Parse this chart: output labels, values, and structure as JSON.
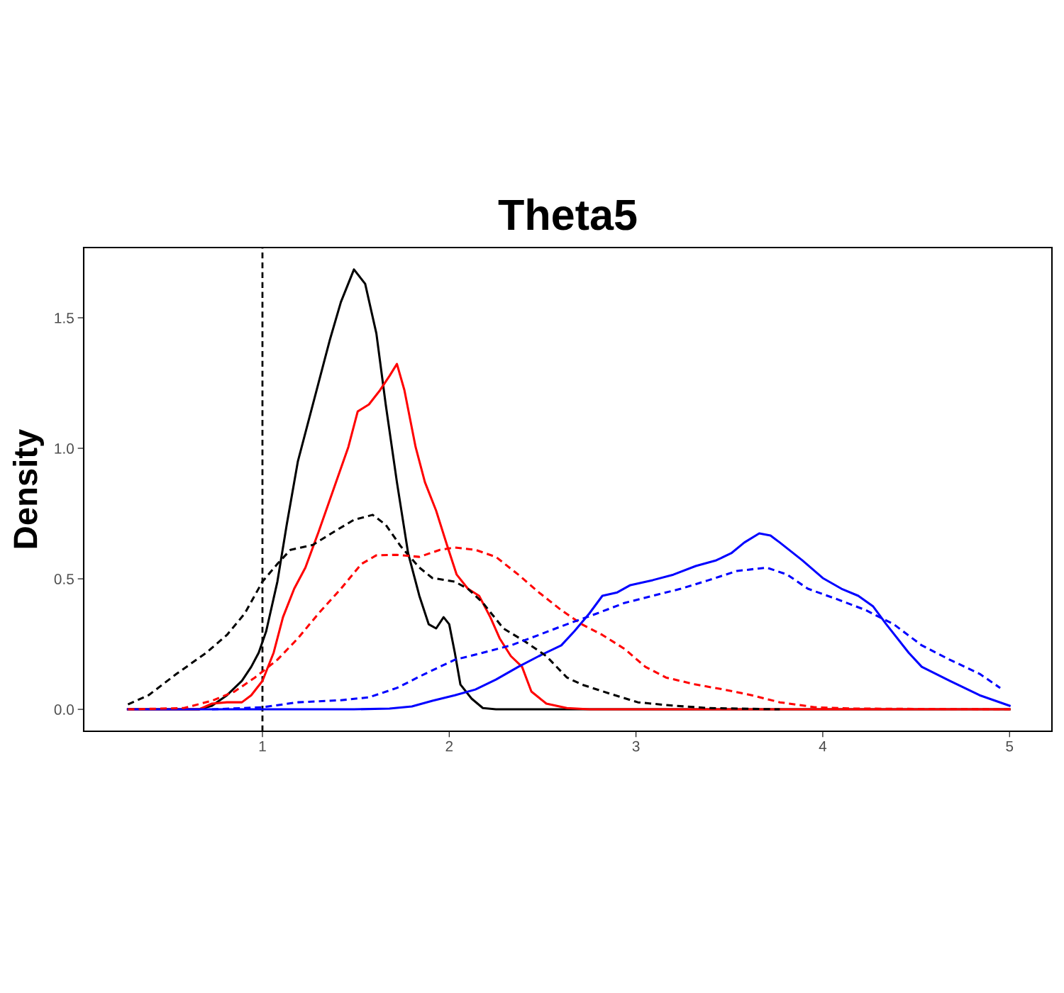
{
  "chart_data": {
    "type": "line",
    "title": "Theta5",
    "ylabel": "Density",
    "xlim": [
      0.043,
      5.227
    ],
    "ylim": [
      -0.084,
      1.769
    ],
    "xticks": [
      1,
      2,
      3,
      4,
      5
    ],
    "yticks": [
      {
        "value": 0,
        "label": "0.0"
      },
      {
        "value": 0.5,
        "label": "0.5"
      },
      {
        "value": 1,
        "label": "1.0"
      },
      {
        "value": 1.5,
        "label": "1.5"
      }
    ],
    "grid": false,
    "legend": false,
    "marker": "none",
    "ref_lines": [
      {
        "axis": "x",
        "value": 1,
        "color": "#000000",
        "line_style": "dashed"
      }
    ],
    "series": [
      {
        "color": "#000000",
        "line_style": "solid",
        "x": [
          0.28,
          0.66,
          0.73,
          0.81,
          0.89,
          0.94,
          0.98,
          1.02,
          1.08,
          1.13,
          1.19,
          1.25,
          1.3,
          1.36,
          1.42,
          1.49,
          1.55,
          1.61,
          1.66,
          1.72,
          1.78,
          1.84,
          1.89,
          1.93,
          1.97,
          2.0,
          2.03,
          2.06,
          2.12,
          2.18,
          2.25,
          5.0
        ],
        "values": [
          0,
          0,
          0.014,
          0.054,
          0.109,
          0.163,
          0.217,
          0.299,
          0.489,
          0.707,
          0.951,
          1.114,
          1.25,
          1.413,
          1.56,
          1.685,
          1.63,
          1.44,
          1.168,
          0.87,
          0.598,
          0.435,
          0.326,
          0.31,
          0.353,
          0.326,
          0.217,
          0.095,
          0.041,
          0.005,
          0,
          0
        ]
      },
      {
        "color": "#000000",
        "line_style": "dashed",
        "x": [
          0.28,
          0.39,
          0.54,
          0.7,
          0.81,
          0.905,
          1.0,
          1.08,
          1.15,
          1.27,
          1.38,
          1.49,
          1.59,
          1.66,
          1.74,
          1.84,
          1.91,
          2.03,
          2.1,
          2.18,
          2.29,
          2.41,
          2.52,
          2.63,
          2.71,
          2.86,
          3.01,
          3.2,
          3.39,
          3.77
        ],
        "values": [
          0.019,
          0.054,
          0.136,
          0.217,
          0.285,
          0.367,
          0.489,
          0.557,
          0.611,
          0.63,
          0.679,
          0.726,
          0.745,
          0.707,
          0.625,
          0.543,
          0.503,
          0.489,
          0.462,
          0.408,
          0.31,
          0.258,
          0.204,
          0.122,
          0.095,
          0.06,
          0.027,
          0.014,
          0.005,
          0
        ]
      },
      {
        "color": "#ff0000",
        "line_style": "solid",
        "x": [
          0.28,
          0.66,
          0.73,
          0.81,
          0.89,
          0.94,
          1.0,
          1.06,
          1.11,
          1.17,
          1.23,
          1.3,
          1.38,
          1.46,
          1.51,
          1.57,
          1.63,
          1.68,
          1.72,
          1.76,
          1.82,
          1.87,
          1.93,
          1.99,
          2.04,
          2.1,
          2.16,
          2.22,
          2.27,
          2.33,
          2.39,
          2.44,
          2.52,
          2.63,
          2.75,
          5.0
        ],
        "values": [
          0,
          0,
          0.022,
          0.027,
          0.027,
          0.054,
          0.109,
          0.217,
          0.353,
          0.462,
          0.543,
          0.679,
          0.842,
          1.005,
          1.141,
          1.168,
          1.223,
          1.277,
          1.323,
          1.223,
          1.005,
          0.87,
          0.761,
          0.625,
          0.516,
          0.462,
          0.435,
          0.353,
          0.272,
          0.204,
          0.163,
          0.068,
          0.022,
          0.005,
          0,
          0
        ]
      },
      {
        "color": "#ff0000",
        "line_style": "dashed",
        "x": [
          0.28,
          0.58,
          0.73,
          0.85,
          0.96,
          1.08,
          1.19,
          1.3,
          1.42,
          1.53,
          1.61,
          1.72,
          1.84,
          1.95,
          2.03,
          2.14,
          2.25,
          2.37,
          2.48,
          2.6,
          2.71,
          2.82,
          2.94,
          3.05,
          3.16,
          3.32,
          3.47,
          3.62,
          3.77,
          3.96,
          4.15,
          5.0
        ],
        "values": [
          0,
          0.005,
          0.033,
          0.068,
          0.122,
          0.19,
          0.272,
          0.367,
          0.462,
          0.557,
          0.59,
          0.592,
          0.584,
          0.611,
          0.62,
          0.611,
          0.584,
          0.516,
          0.448,
          0.38,
          0.326,
          0.285,
          0.231,
          0.163,
          0.122,
          0.095,
          0.076,
          0.054,
          0.027,
          0.008,
          0.003,
          0
        ]
      },
      {
        "color": "#0000ff",
        "line_style": "solid",
        "x": [
          0.28,
          1.49,
          1.68,
          1.8,
          1.91,
          2.03,
          2.14,
          2.25,
          2.37,
          2.48,
          2.6,
          2.67,
          2.75,
          2.82,
          2.9,
          2.97,
          3.09,
          3.2,
          3.32,
          3.43,
          3.51,
          3.58,
          3.66,
          3.72,
          3.77,
          3.89,
          4.0,
          4.1,
          4.19,
          4.27,
          4.34,
          4.46,
          4.53,
          4.68,
          4.84,
          5.0
        ],
        "values": [
          0,
          0,
          0.003,
          0.011,
          0.033,
          0.054,
          0.076,
          0.114,
          0.163,
          0.204,
          0.245,
          0.299,
          0.367,
          0.435,
          0.448,
          0.476,
          0.495,
          0.516,
          0.549,
          0.571,
          0.598,
          0.639,
          0.674,
          0.666,
          0.639,
          0.571,
          0.503,
          0.462,
          0.435,
          0.394,
          0.326,
          0.217,
          0.163,
          0.109,
          0.054,
          0.014
        ]
      },
      {
        "color": "#0000ff",
        "line_style": "dashed",
        "x": [
          0.73,
          1.0,
          1.19,
          1.42,
          1.57,
          1.72,
          1.87,
          2.03,
          2.18,
          2.33,
          2.48,
          2.63,
          2.79,
          2.94,
          3.09,
          3.24,
          3.39,
          3.54,
          3.7,
          3.81,
          3.92,
          4.08,
          4.23,
          4.38,
          4.53,
          4.68,
          4.84,
          4.95
        ],
        "values": [
          0,
          0.008,
          0.027,
          0.035,
          0.046,
          0.082,
          0.136,
          0.19,
          0.217,
          0.245,
          0.285,
          0.326,
          0.367,
          0.408,
          0.435,
          0.462,
          0.495,
          0.53,
          0.543,
          0.516,
          0.462,
          0.421,
          0.38,
          0.326,
          0.245,
          0.19,
          0.136,
          0.082
        ]
      }
    ]
  }
}
